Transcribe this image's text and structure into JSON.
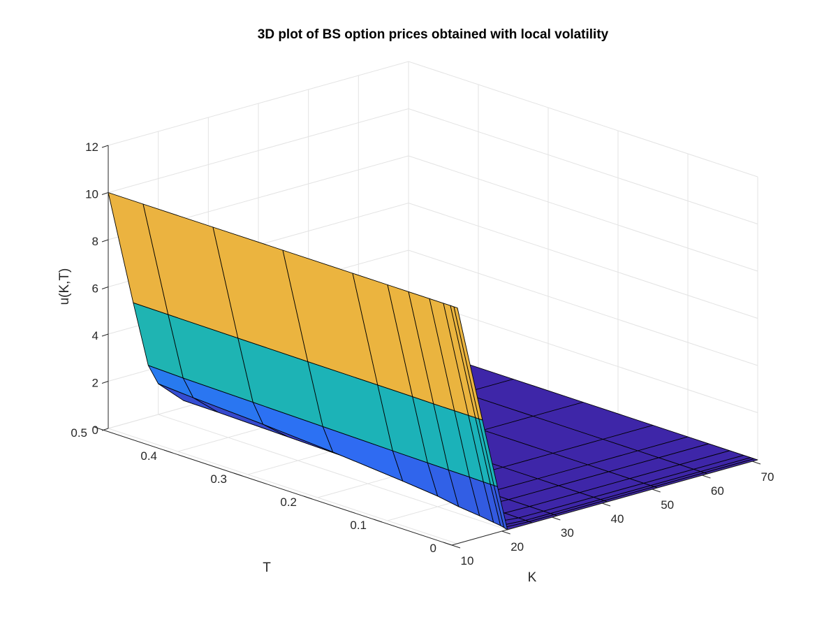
{
  "chart_data": {
    "type": "surface3d",
    "title": "3D plot of BS option prices obtained with local volatility",
    "xlabel": "K",
    "ylabel": "T",
    "zlabel": "u(K,T)",
    "xlim": [
      10,
      70
    ],
    "ylim": [
      0,
      0.5
    ],
    "zlim": [
      0,
      12
    ],
    "xticks": [
      "10",
      "20",
      "30",
      "40",
      "50",
      "60",
      "70"
    ],
    "yticks": [
      "0",
      "0.1",
      "0.2",
      "0.3",
      "0.4",
      "0.5"
    ],
    "zticks": [
      "0",
      "2",
      "4",
      "6",
      "8",
      "10",
      "12"
    ],
    "grid": true,
    "colormap": [
      "#3e26a8",
      "#2e6ef5",
      "#0ea8d6",
      "#2ec090",
      "#8ac878",
      "#e7b43c",
      "#f6b24a",
      "#f9fb14"
    ],
    "K": [
      10,
      15,
      18,
      20,
      25,
      30,
      40,
      50,
      60,
      70
    ],
    "T": [
      0,
      0.005,
      0.01,
      0.02,
      0.04,
      0.07,
      0.1,
      0.15,
      0.25,
      0.35,
      0.45,
      0.5
    ],
    "u": [
      [
        10.0,
        4.95,
        1.95,
        0.0,
        0,
        0,
        0,
        0,
        0,
        0
      ],
      [
        10.0,
        4.95,
        1.95,
        0.05,
        0,
        0,
        0,
        0,
        0,
        0
      ],
      [
        10.0,
        4.95,
        1.95,
        0.08,
        0.004,
        0,
        0,
        0,
        0,
        0
      ],
      [
        10.0,
        4.95,
        1.95,
        0.12,
        0.01,
        0,
        0,
        0,
        0,
        0
      ],
      [
        10.0,
        4.95,
        1.96,
        0.2,
        0.02,
        0.002,
        0,
        0,
        0,
        0
      ],
      [
        10.0,
        4.95,
        1.97,
        0.3,
        0.04,
        0.004,
        0,
        0,
        0,
        0
      ],
      [
        10.0,
        4.96,
        1.98,
        0.45,
        0.07,
        0.008,
        0,
        0,
        0,
        0
      ],
      [
        10.0,
        4.97,
        2.0,
        0.6,
        0.1,
        0.015,
        0,
        0,
        0,
        0
      ],
      [
        10.0,
        4.98,
        2.05,
        0.85,
        0.16,
        0.03,
        0,
        0,
        0,
        0
      ],
      [
        10.0,
        5.0,
        2.1,
        1.05,
        0.22,
        0.05,
        0,
        0,
        0,
        0
      ],
      [
        10.0,
        5.02,
        2.15,
        1.2,
        0.28,
        0.07,
        0,
        0,
        0,
        0
      ],
      [
        10.0,
        5.03,
        2.2,
        1.3,
        0.3,
        0.08,
        0,
        0,
        0,
        0
      ]
    ]
  }
}
